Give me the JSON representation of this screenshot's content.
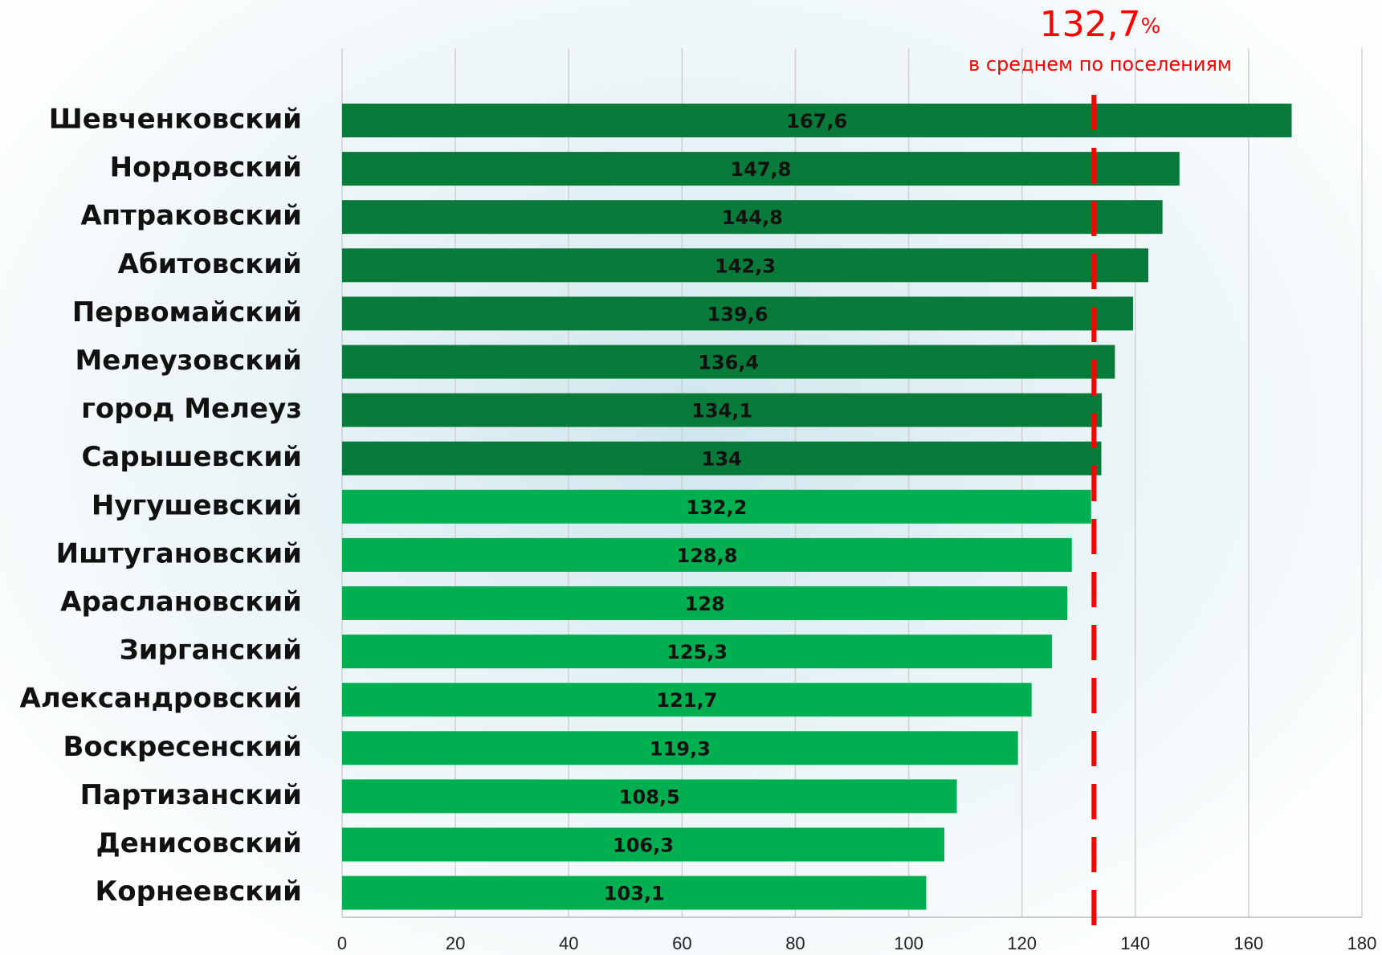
{
  "chart_data": {
    "type": "bar",
    "orientation": "horizontal",
    "categories": [
      "Шевченковский",
      "Нордовский",
      "Аптраковский",
      "Абитовский ",
      "Первомайский",
      "Мелеузовский",
      "город Мелеуз",
      "Сарышевский",
      "Нугушевский",
      "Иштугановский",
      "Араслановский",
      "Зирганский",
      "Александровский",
      "Воскресенский",
      "Партизанский",
      "Денисовский",
      "Корнеевский"
    ],
    "values": [
      167.6,
      147.8,
      144.8,
      142.3,
      139.6,
      136.4,
      134.1,
      134,
      132.2,
      128.8,
      128,
      125.3,
      121.7,
      119.3,
      108.5,
      106.3,
      103.1
    ],
    "value_labels": [
      "167,6",
      "147,8",
      "144,8",
      "142,3",
      "139,6",
      "136,4",
      "134,1",
      "134",
      "132,2",
      "128,8",
      "128",
      "125,3",
      "121,7",
      "119,3",
      "108,5",
      "106,3",
      "103,1"
    ],
    "colors": [
      "#087a3a",
      "#087a3a",
      "#087a3a",
      "#087a3a",
      "#087a3a",
      "#087a3a",
      "#087a3a",
      "#087a3a",
      "#00b050",
      "#00b050",
      "#00b050",
      "#00b050",
      "#00b050",
      "#00b050",
      "#00b050",
      "#00b050",
      "#00b050"
    ],
    "xlim": [
      0,
      180
    ],
    "xticks": [
      0,
      20,
      40,
      60,
      80,
      100,
      120,
      140,
      160,
      180
    ],
    "grid": true,
    "reference_line": {
      "value": 132.7,
      "label": "132,7",
      "unit": "%",
      "text": "в среднем по поселениям",
      "color": "#ff0000"
    }
  }
}
